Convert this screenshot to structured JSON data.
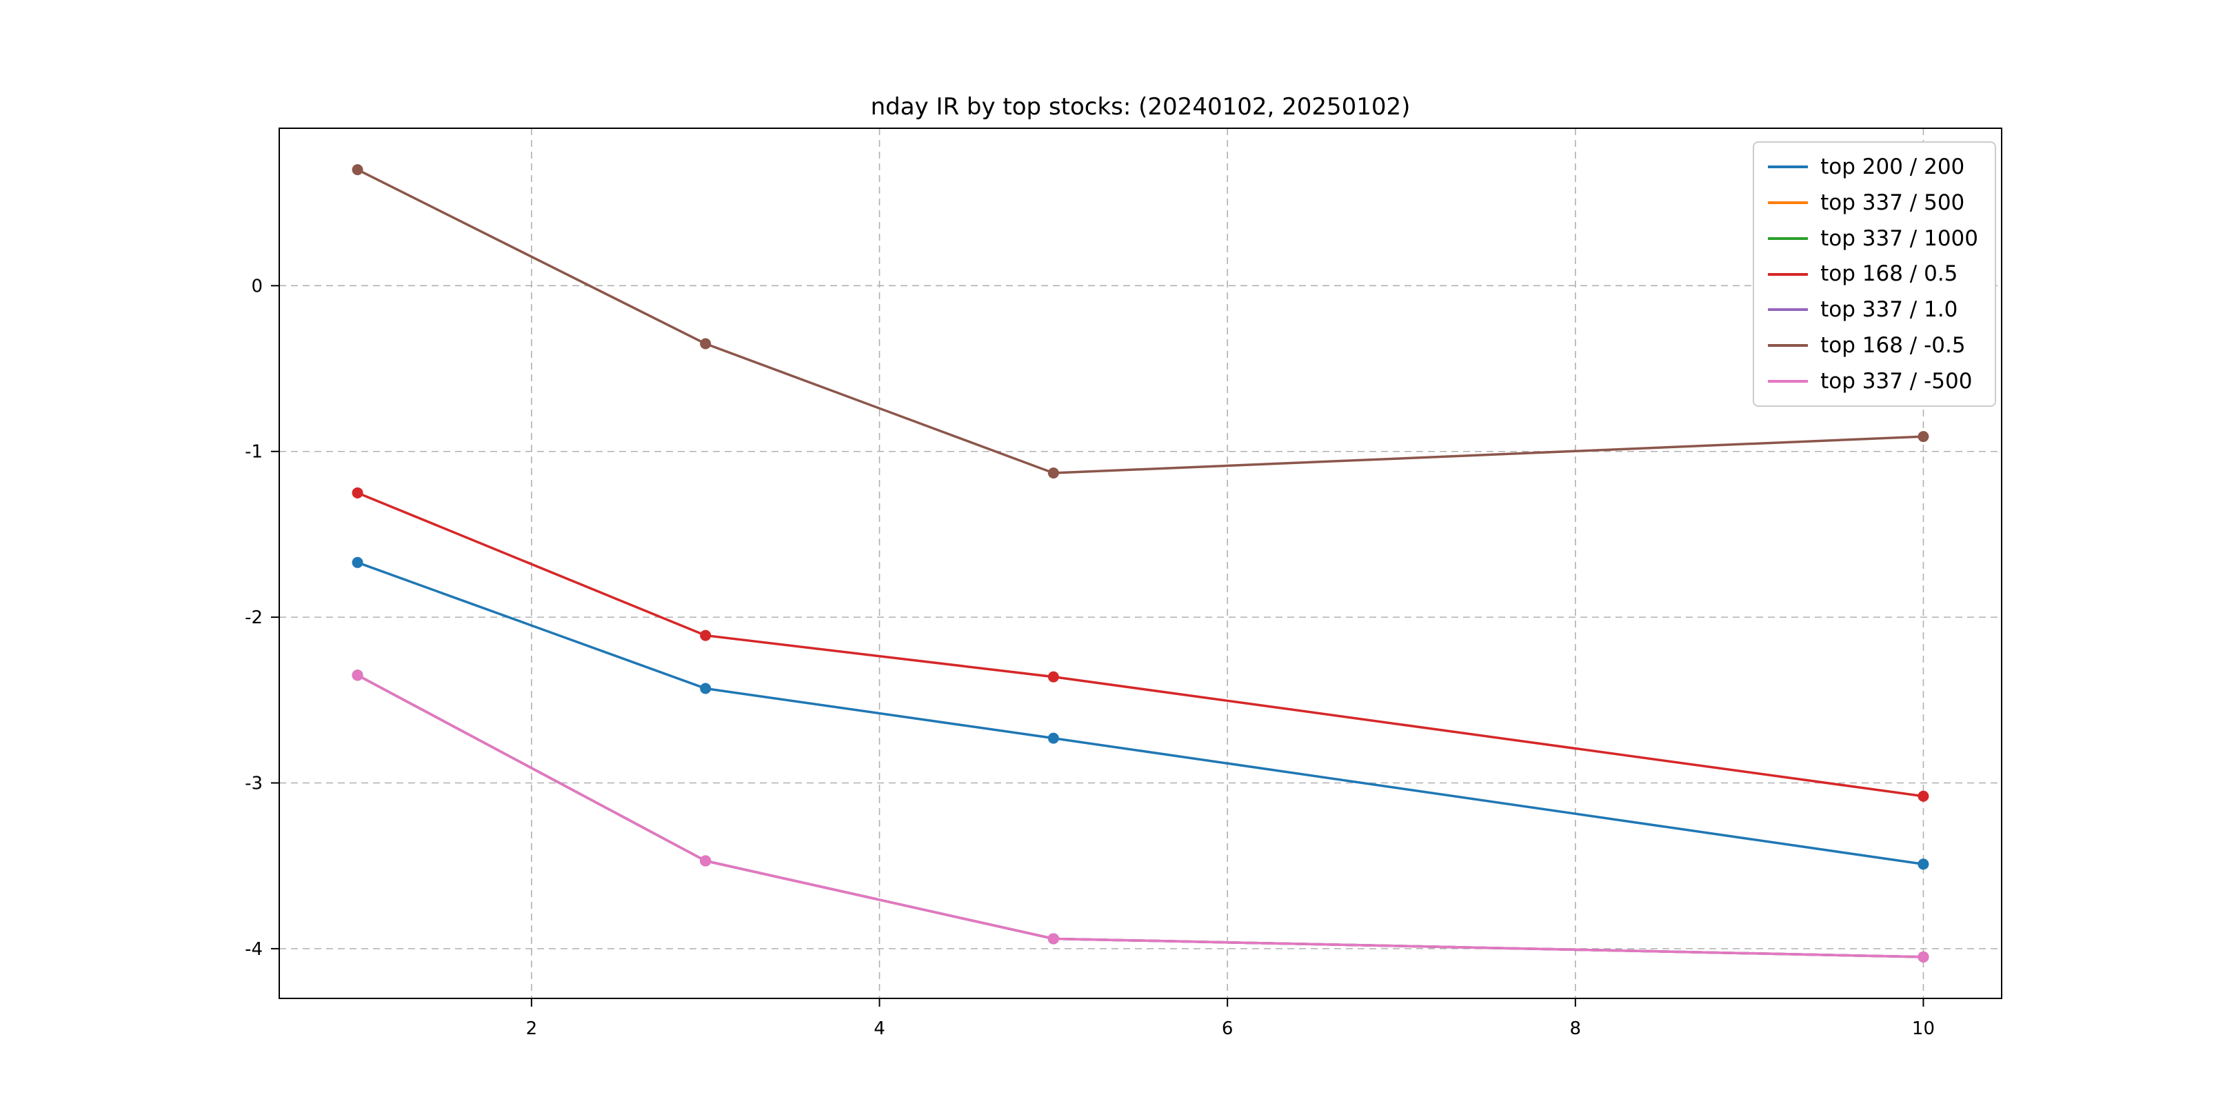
{
  "chart_data": {
    "type": "line",
    "title": "nday IR by top stocks: (20240102, 20250102)",
    "xlabel": "",
    "ylabel": "",
    "x": [
      1,
      3,
      5,
      10
    ],
    "xticks": [
      2,
      4,
      6,
      8,
      10
    ],
    "yticks": [
      0,
      -1,
      -2,
      -3,
      -4
    ],
    "xlim": [
      0.55,
      10.45
    ],
    "ylim": [
      -4.3,
      0.95
    ],
    "grid": "dashed",
    "legend_position": "upper-right",
    "series": [
      {
        "name": "top 200 / 200",
        "color": "#1f77b4",
        "values": [
          -1.67,
          -2.43,
          -2.73,
          -3.49
        ]
      },
      {
        "name": "top 337 / 500",
        "color": "#ff7f0e",
        "values": [
          -2.35,
          -3.47,
          -3.94,
          -4.05
        ]
      },
      {
        "name": "top 337 / 1000",
        "color": "#2ca02c",
        "values": [
          -2.35,
          -3.47,
          -3.94,
          -4.05
        ]
      },
      {
        "name": "top 168 / 0.5",
        "color": "#d62728",
        "values": [
          -1.25,
          -2.11,
          -2.36,
          -3.08
        ]
      },
      {
        "name": "top 337 / 1.0",
        "color": "#9467bd",
        "values": [
          -2.35,
          -3.47,
          -3.94,
          -4.05
        ]
      },
      {
        "name": "top 168 / -0.5",
        "color": "#8c564b",
        "values": [
          0.7,
          -0.35,
          -1.13,
          -0.91
        ]
      },
      {
        "name": "top 337 / -500",
        "color": "#e377c2",
        "values": [
          -2.35,
          -3.47,
          -3.94,
          -4.05
        ]
      }
    ]
  }
}
